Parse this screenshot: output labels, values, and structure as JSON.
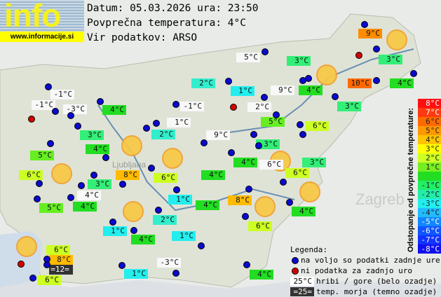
{
  "header": {
    "logo_text": "info",
    "logo_url": "www.informacije.si",
    "date_line": "Datum: 05.03.2026 ura: 23:50",
    "avg_line": "Povprečna temperatura: 4°C",
    "source_line": "Vir podatkov: ARSO"
  },
  "colors": {
    "white": "#f8f8f8",
    "green": "#22dd22",
    "mint": "#33ee77",
    "teal": "#33eecc",
    "cyan": "#22eeee",
    "lime": "#66ee22",
    "yellowgreen": "#ccff22",
    "amber": "#ffbb00",
    "orange": "#ff8c00",
    "deeporange": "#ff6a00",
    "dark": "#333333"
  },
  "stations": [
    {
      "t": "-1°C",
      "c": "white"
    },
    {
      "t": "-1°C",
      "c": "white"
    },
    {
      "t": "-3°C",
      "c": "white"
    },
    {
      "t": "4°C",
      "c": "green"
    },
    {
      "t": "2°C",
      "c": "teal"
    },
    {
      "t": "-1°C",
      "c": "white"
    },
    {
      "t": "1°C",
      "c": "white"
    },
    {
      "t": "2°C",
      "c": "teal"
    },
    {
      "t": "3°C",
      "c": "mint"
    },
    {
      "t": "4°C",
      "c": "green"
    },
    {
      "t": "9°C",
      "c": "white"
    },
    {
      "t": "5°C",
      "c": "white"
    },
    {
      "t": "1°C",
      "c": "cyan"
    },
    {
      "t": "9°C",
      "c": "white"
    },
    {
      "t": "2°C",
      "c": "white"
    },
    {
      "t": "3°C",
      "c": "mint"
    },
    {
      "t": "4°C",
      "c": "green"
    },
    {
      "t": "9°C",
      "c": "orange"
    },
    {
      "t": "3°C",
      "c": "mint"
    },
    {
      "t": "10°C",
      "c": "deeporange"
    },
    {
      "t": "4°C",
      "c": "green"
    },
    {
      "t": "3°C",
      "c": "mint"
    },
    {
      "t": "5°C",
      "c": "lime"
    },
    {
      "t": "6°C",
      "c": "yellowgreen"
    },
    {
      "t": "3°C",
      "c": "mint"
    },
    {
      "t": "5°C",
      "c": "lime"
    },
    {
      "t": "6°C",
      "c": "yellowgreen"
    },
    {
      "t": "8°C",
      "c": "amber"
    },
    {
      "t": "3°C",
      "c": "mint"
    },
    {
      "t": "6°C",
      "c": "yellowgreen"
    },
    {
      "t": "4°C",
      "c": "white"
    },
    {
      "t": "5°C",
      "c": "lime"
    },
    {
      "t": "4°C",
      "c": "green"
    },
    {
      "t": "4°C",
      "c": "green"
    },
    {
      "t": "4°C",
      "c": "green"
    },
    {
      "t": "6°C",
      "c": "white"
    },
    {
      "t": "3°C",
      "c": "mint"
    },
    {
      "t": "6°C",
      "c": "yellowgreen"
    },
    {
      "t": "1°C",
      "c": "cyan"
    },
    {
      "t": "4°C",
      "c": "green"
    },
    {
      "t": "8°C",
      "c": "amber"
    },
    {
      "t": "4°C",
      "c": "green"
    },
    {
      "t": "6°C",
      "c": "yellowgreen"
    },
    {
      "t": "2°C",
      "c": "teal"
    },
    {
      "t": "1°C",
      "c": "cyan"
    },
    {
      "t": "4°C",
      "c": "green"
    },
    {
      "t": "1°C",
      "c": "cyan"
    },
    {
      "t": "6°C",
      "c": "yellowgreen"
    },
    {
      "t": "8°C",
      "c": "amber"
    },
    {
      "t": "=12=",
      "c": "dark"
    },
    {
      "t": "6°C",
      "c": "yellowgreen"
    },
    {
      "t": "1°C",
      "c": "cyan"
    },
    {
      "t": "-3°C",
      "c": "white"
    },
    {
      "t": "4°C",
      "c": "green"
    }
  ],
  "scale": {
    "title": "Odstopanje od povprečne temperature:",
    "steps": [
      {
        "t": "8°C",
        "c": "#ff1010"
      },
      {
        "t": "7°C",
        "c": "#ff3a10"
      },
      {
        "t": "6°C",
        "c": "#ff6a00"
      },
      {
        "t": "5°C",
        "c": "#ff9900"
      },
      {
        "t": "4°C",
        "c": "#ffc400"
      },
      {
        "t": "3°C",
        "c": "#ffff00"
      },
      {
        "t": "2°C",
        "c": "#ccff22"
      },
      {
        "t": "1°C",
        "c": "#77ee22"
      },
      {
        "t": "",
        "c": "#22dd22"
      },
      {
        "t": "-1°C",
        "c": "#22ee66"
      },
      {
        "t": "-2°C",
        "c": "#22eeaa"
      },
      {
        "t": "-3°C",
        "c": "#22eeee"
      },
      {
        "t": "-4°C",
        "c": "#22bbff"
      },
      {
        "t": "-5°C",
        "c": "#1188ff"
      },
      {
        "t": "-6°C",
        "c": "#1155ff"
      },
      {
        "t": "-7°C",
        "c": "#1133ff"
      },
      {
        "t": "-8°C",
        "c": "#1010ee"
      }
    ]
  },
  "legend": {
    "title": "Legenda:",
    "blue": "na voljo so podatki zadnje ure",
    "red": "ni podatka za zadnjo uro",
    "hill_sample": "25°C",
    "hill": "hribi / gore (belo ozadje)",
    "sea_sample": "=25=",
    "sea": "temp. morja (temno ozadje)",
    "blue_color": "#0a0ad0",
    "red_color": "#d40000"
  },
  "map_labels": {
    "zagreb": "Zagreb",
    "ljubljana": "Ljubljana"
  }
}
